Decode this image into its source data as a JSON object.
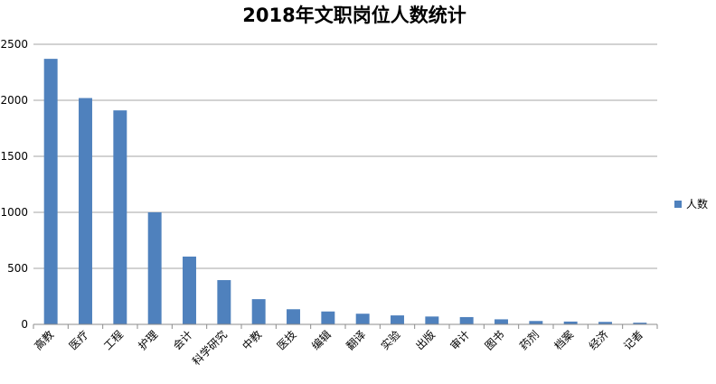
{
  "chart_data": {
    "type": "bar",
    "title": "2018年文职岗位人数统计",
    "xlabel": "",
    "ylabel": "",
    "ylim": [
      0,
      2500
    ],
    "yticks": [
      0,
      500,
      1000,
      1500,
      2000,
      2500
    ],
    "grid": true,
    "legend_position": "right",
    "series": [
      {
        "name": "人数",
        "color": "#4f81bd",
        "values": [
          2370,
          2020,
          1910,
          1000,
          605,
          395,
          225,
          135,
          115,
          95,
          80,
          70,
          65,
          45,
          30,
          25,
          22,
          15
        ]
      }
    ],
    "categories": [
      "高教",
      "医疗",
      "工程",
      "护理",
      "会计",
      "科学研究",
      "中教",
      "医技",
      "编辑",
      "翻译",
      "实验",
      "出版",
      "审计",
      "图书",
      "药剂",
      "档案",
      "经济",
      "记者"
    ]
  }
}
